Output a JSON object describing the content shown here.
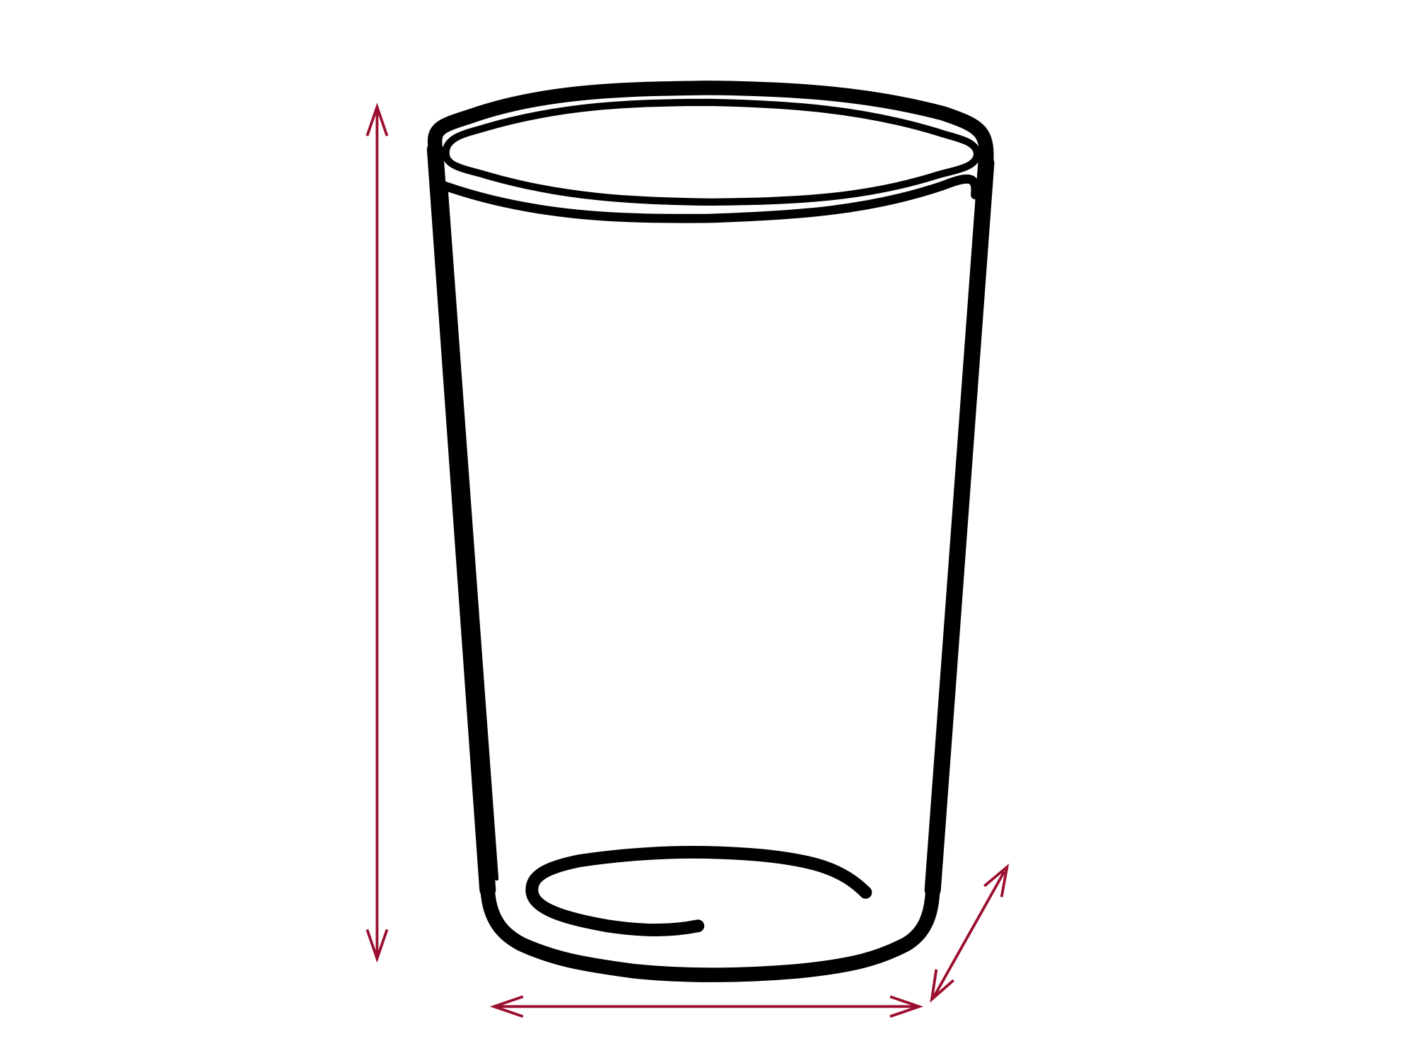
{
  "diagram": {
    "subject": "drinking-glass-outline",
    "colors": {
      "outline": "#000000",
      "dimension_arrows": "#9b0e2e",
      "background": "#ffffff"
    },
    "dimension_arrows": [
      "height-arrow",
      "width-arrow",
      "depth-arrow"
    ]
  }
}
